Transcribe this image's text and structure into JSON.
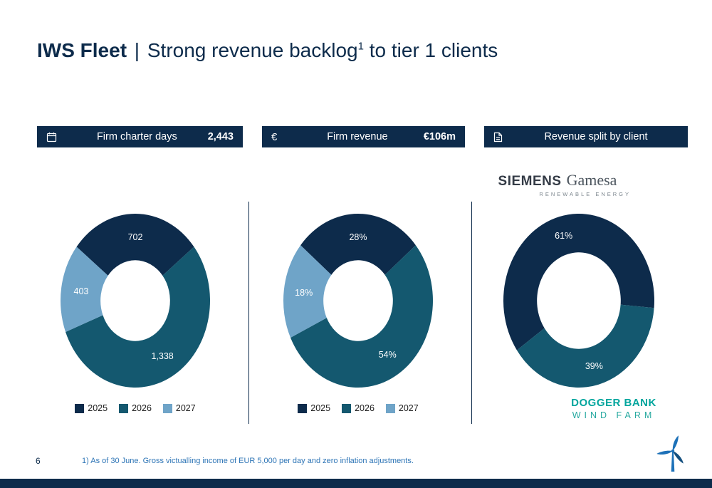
{
  "slide": {
    "title": {
      "brand": "IWS Fleet",
      "separator": "|",
      "main": "Strong revenue backlog",
      "superscript": "1",
      "tail": "to tier 1 clients"
    }
  },
  "panels": [
    {
      "icon": "calendar-icon",
      "label": "Firm charter days",
      "value": "2,443"
    },
    {
      "icon": "euro-icon",
      "icon_char": "€",
      "label": "Firm revenue",
      "value": "€106m"
    },
    {
      "icon": "document-icon",
      "label": "Revenue split by client",
      "value": ""
    }
  ],
  "chart_data": [
    {
      "type": "pie",
      "subtype": "donut",
      "title": "Firm charter days",
      "categories": [
        "2025",
        "2026",
        "2027"
      ],
      "values": [
        702,
        1338,
        403
      ],
      "labels": [
        "702",
        "1,338",
        "403"
      ],
      "colors": [
        "#0d2b4b",
        "#14586f",
        "#6fa4c8"
      ],
      "total": 2443,
      "legend_position": "bottom"
    },
    {
      "type": "pie",
      "subtype": "donut",
      "title": "Firm revenue",
      "categories": [
        "2025",
        "2026",
        "2027"
      ],
      "values": [
        28,
        54,
        18
      ],
      "labels": [
        "28%",
        "54%",
        "18%"
      ],
      "colors": [
        "#0d2b4b",
        "#14586f",
        "#6fa4c8"
      ],
      "unit": "%",
      "legend_position": "bottom"
    },
    {
      "type": "pie",
      "subtype": "donut",
      "title": "Revenue split by client",
      "categories": [
        "Siemens Gamesa",
        "Dogger Bank Wind Farm"
      ],
      "values": [
        61,
        39
      ],
      "labels": [
        "61%",
        "39%"
      ],
      "colors": [
        "#0d2b4b",
        "#14586f"
      ],
      "unit": "%",
      "legend_position": "none"
    }
  ],
  "clients": {
    "siemens_gamesa": {
      "word1": "SIEMENS",
      "word2": "Gamesa",
      "subline": "RENEWABLE ENERGY"
    },
    "dogger_bank": {
      "line1": "DOGGER BANK",
      "line2": "WIND FARM"
    }
  },
  "footer": {
    "page_number": "6",
    "footnote": "1) As of 30 June. Gross victualling income of EUR 5,000 per day and zero inflation adjustments."
  },
  "colors": {
    "navy": "#0d2b4b",
    "teal": "#14586f",
    "light_blue": "#6fa4c8",
    "footnote_blue": "#2e75b6",
    "dogger_teal": "#00a59d",
    "logo_blue": "#1d71b8"
  }
}
